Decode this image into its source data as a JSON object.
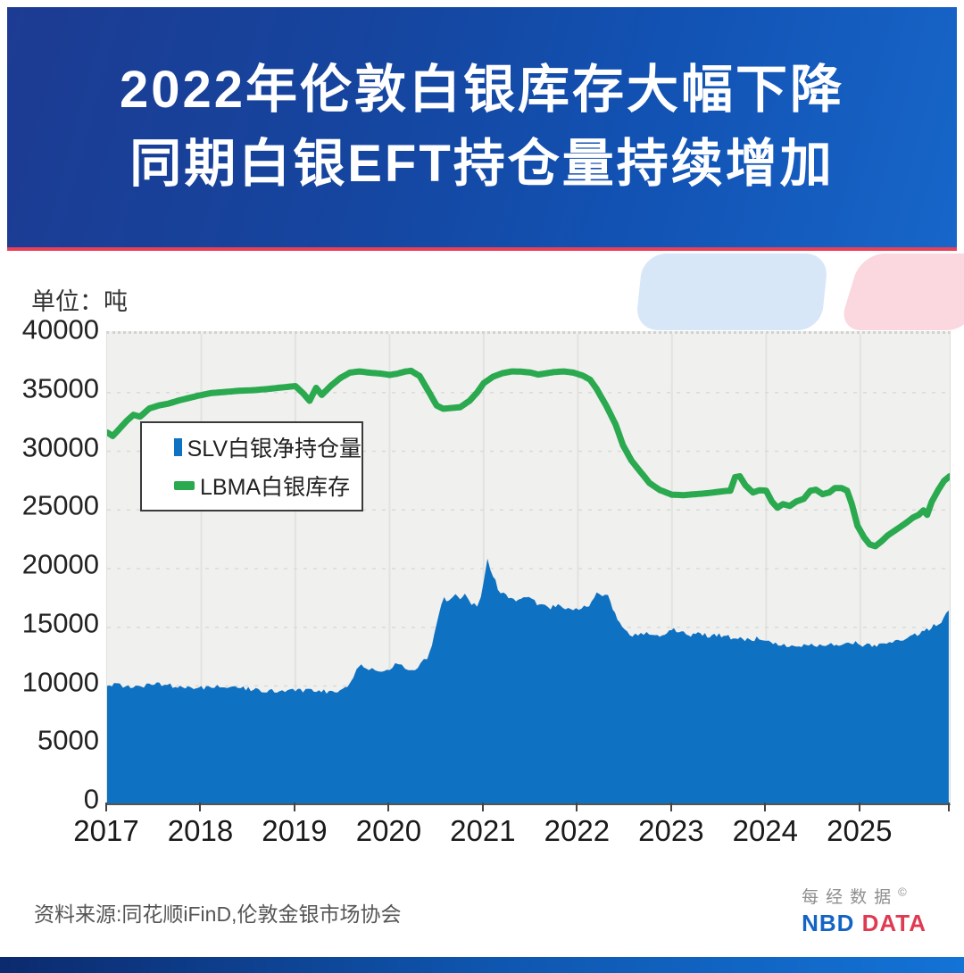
{
  "header": {
    "title_line1": "2022年伦敦白银库存大幅下降",
    "title_line2": "同期白银EFT持仓量持续增加"
  },
  "chart": {
    "unit_label": "单位：吨",
    "legend": [
      {
        "label": "SLV白银净持仓量",
        "color": "#0f71c1"
      },
      {
        "label": "LBMA白银库存",
        "color": "#2aa94f"
      }
    ]
  },
  "chart_data": {
    "type": "area+line",
    "title": "2022年伦敦白银库存大幅下降 同期白银EFT持仓量持续增加",
    "ylabel": "单位：吨",
    "ylim": [
      0,
      40000
    ],
    "y_ticks": [
      0,
      5000,
      10000,
      15000,
      20000,
      25000,
      30000,
      35000,
      40000
    ],
    "x_ticks": [
      2017,
      2018,
      2019,
      2020,
      2021,
      2022,
      2023,
      2024,
      2025
    ],
    "x_range": [
      2017,
      2025.95
    ],
    "grid": "on",
    "legend_position": "upper-left-box",
    "series": [
      {
        "name": "SLV白银净持仓量",
        "type": "area",
        "color": "#0f71c1",
        "jitter": 200,
        "points": [
          [
            2017.0,
            10200
          ],
          [
            2017.05,
            10060
          ],
          [
            2017.1,
            10150
          ],
          [
            2017.17,
            9980
          ],
          [
            2017.25,
            9860
          ],
          [
            2017.33,
            9940
          ],
          [
            2017.42,
            10050
          ],
          [
            2017.5,
            10120
          ],
          [
            2017.58,
            10160
          ],
          [
            2017.67,
            10060
          ],
          [
            2017.75,
            9960
          ],
          [
            2017.83,
            9900
          ],
          [
            2017.92,
            9860
          ],
          [
            2018.0,
            9840
          ],
          [
            2018.08,
            9950
          ],
          [
            2018.17,
            9990
          ],
          [
            2018.25,
            9900
          ],
          [
            2018.33,
            9850
          ],
          [
            2018.42,
            9790
          ],
          [
            2018.5,
            9740
          ],
          [
            2018.58,
            9700
          ],
          [
            2018.67,
            9620
          ],
          [
            2018.75,
            9560
          ],
          [
            2018.83,
            9600
          ],
          [
            2018.92,
            9650
          ],
          [
            2019.0,
            9690
          ],
          [
            2019.08,
            9620
          ],
          [
            2019.17,
            9560
          ],
          [
            2019.25,
            9500
          ],
          [
            2019.33,
            9530
          ],
          [
            2019.42,
            9570
          ],
          [
            2019.5,
            9690
          ],
          [
            2019.58,
            10200
          ],
          [
            2019.65,
            11500
          ],
          [
            2019.7,
            11750
          ],
          [
            2019.78,
            11480
          ],
          [
            2019.85,
            11280
          ],
          [
            2019.92,
            11230
          ],
          [
            2020.0,
            11450
          ],
          [
            2020.06,
            11850
          ],
          [
            2020.13,
            11700
          ],
          [
            2020.2,
            11480
          ],
          [
            2020.27,
            11300
          ],
          [
            2020.33,
            11850
          ],
          [
            2020.4,
            12400
          ],
          [
            2020.45,
            13600
          ],
          [
            2020.5,
            15300
          ],
          [
            2020.55,
            17000
          ],
          [
            2020.58,
            17560
          ],
          [
            2020.63,
            17180
          ],
          [
            2020.7,
            17820
          ],
          [
            2020.75,
            17480
          ],
          [
            2020.8,
            17940
          ],
          [
            2020.87,
            16850
          ],
          [
            2020.93,
            16940
          ],
          [
            2020.97,
            17400
          ],
          [
            2021.0,
            18850
          ],
          [
            2021.04,
            20990
          ],
          [
            2021.07,
            19850
          ],
          [
            2021.1,
            19390
          ],
          [
            2021.15,
            18400
          ],
          [
            2021.21,
            17780
          ],
          [
            2021.29,
            17500
          ],
          [
            2021.37,
            17330
          ],
          [
            2021.45,
            17710
          ],
          [
            2021.54,
            17150
          ],
          [
            2021.62,
            16850
          ],
          [
            2021.71,
            16610
          ],
          [
            2021.79,
            16940
          ],
          [
            2021.87,
            16660
          ],
          [
            2021.95,
            16560
          ],
          [
            2022.04,
            16610
          ],
          [
            2022.12,
            16940
          ],
          [
            2022.2,
            17940
          ],
          [
            2022.26,
            17820
          ],
          [
            2022.32,
            17560
          ],
          [
            2022.37,
            16560
          ],
          [
            2022.42,
            15800
          ],
          [
            2022.47,
            14880
          ],
          [
            2022.55,
            14270
          ],
          [
            2022.64,
            14420
          ],
          [
            2022.73,
            14500
          ],
          [
            2022.82,
            14230
          ],
          [
            2022.92,
            14500
          ],
          [
            2023.02,
            14810
          ],
          [
            2023.1,
            14660
          ],
          [
            2023.2,
            14310
          ],
          [
            2023.3,
            14460
          ],
          [
            2023.4,
            14230
          ],
          [
            2023.5,
            14310
          ],
          [
            2023.6,
            14150
          ],
          [
            2023.7,
            14080
          ],
          [
            2023.8,
            13890
          ],
          [
            2023.9,
            14040
          ],
          [
            2024.0,
            13920
          ],
          [
            2024.1,
            13660
          ],
          [
            2024.22,
            13480
          ],
          [
            2024.35,
            13360
          ],
          [
            2024.48,
            13550
          ],
          [
            2024.6,
            13430
          ],
          [
            2024.72,
            13580
          ],
          [
            2024.85,
            13640
          ],
          [
            2024.95,
            13700
          ],
          [
            2025.05,
            13480
          ],
          [
            2025.15,
            13360
          ],
          [
            2025.25,
            13580
          ],
          [
            2025.37,
            13820
          ],
          [
            2025.48,
            14040
          ],
          [
            2025.58,
            14310
          ],
          [
            2025.68,
            14700
          ],
          [
            2025.78,
            15100
          ],
          [
            2025.86,
            15500
          ],
          [
            2025.94,
            16450
          ]
        ]
      },
      {
        "name": "LBMA白银库存",
        "type": "line",
        "color": "#2aa94f",
        "jitter": 0,
        "points": [
          [
            2017.0,
            31600
          ],
          [
            2017.06,
            31300
          ],
          [
            2017.13,
            31900
          ],
          [
            2017.21,
            32600
          ],
          [
            2017.28,
            33100
          ],
          [
            2017.35,
            32950
          ],
          [
            2017.45,
            33650
          ],
          [
            2017.55,
            33900
          ],
          [
            2017.65,
            34050
          ],
          [
            2017.75,
            34300
          ],
          [
            2017.85,
            34500
          ],
          [
            2017.95,
            34700
          ],
          [
            2018.1,
            34950
          ],
          [
            2018.25,
            35050
          ],
          [
            2018.4,
            35150
          ],
          [
            2018.55,
            35200
          ],
          [
            2018.7,
            35300
          ],
          [
            2018.85,
            35430
          ],
          [
            2019.0,
            35550
          ],
          [
            2019.08,
            34950
          ],
          [
            2019.15,
            34300
          ],
          [
            2019.22,
            35400
          ],
          [
            2019.28,
            34800
          ],
          [
            2019.38,
            35600
          ],
          [
            2019.48,
            36250
          ],
          [
            2019.58,
            36700
          ],
          [
            2019.68,
            36800
          ],
          [
            2019.78,
            36700
          ],
          [
            2019.9,
            36620
          ],
          [
            2020.0,
            36500
          ],
          [
            2020.08,
            36600
          ],
          [
            2020.17,
            36800
          ],
          [
            2020.23,
            36850
          ],
          [
            2020.32,
            36400
          ],
          [
            2020.4,
            35300
          ],
          [
            2020.5,
            33900
          ],
          [
            2020.57,
            33620
          ],
          [
            2020.65,
            33680
          ],
          [
            2020.75,
            33750
          ],
          [
            2020.85,
            34300
          ],
          [
            2020.93,
            35000
          ],
          [
            2021.0,
            35800
          ],
          [
            2021.1,
            36350
          ],
          [
            2021.2,
            36650
          ],
          [
            2021.3,
            36800
          ],
          [
            2021.4,
            36780
          ],
          [
            2021.5,
            36700
          ],
          [
            2021.58,
            36530
          ],
          [
            2021.65,
            36620
          ],
          [
            2021.75,
            36750
          ],
          [
            2021.85,
            36800
          ],
          [
            2021.95,
            36700
          ],
          [
            2022.05,
            36450
          ],
          [
            2022.13,
            36100
          ],
          [
            2022.2,
            35300
          ],
          [
            2022.3,
            33900
          ],
          [
            2022.4,
            32300
          ],
          [
            2022.48,
            30500
          ],
          [
            2022.57,
            29200
          ],
          [
            2022.66,
            28300
          ],
          [
            2022.76,
            27300
          ],
          [
            2022.87,
            26700
          ],
          [
            2023.0,
            26300
          ],
          [
            2023.12,
            26260
          ],
          [
            2023.25,
            26340
          ],
          [
            2023.4,
            26450
          ],
          [
            2023.55,
            26600
          ],
          [
            2023.62,
            26640
          ],
          [
            2023.67,
            27790
          ],
          [
            2023.72,
            27870
          ],
          [
            2023.78,
            27100
          ],
          [
            2023.86,
            26490
          ],
          [
            2023.93,
            26680
          ],
          [
            2024.0,
            26640
          ],
          [
            2024.06,
            25720
          ],
          [
            2024.12,
            25190
          ],
          [
            2024.18,
            25500
          ],
          [
            2024.25,
            25340
          ],
          [
            2024.32,
            25720
          ],
          [
            2024.4,
            25950
          ],
          [
            2024.47,
            26640
          ],
          [
            2024.53,
            26720
          ],
          [
            2024.6,
            26340
          ],
          [
            2024.67,
            26490
          ],
          [
            2024.73,
            26870
          ],
          [
            2024.8,
            26870
          ],
          [
            2024.86,
            26640
          ],
          [
            2024.91,
            25500
          ],
          [
            2024.97,
            23660
          ],
          [
            2025.04,
            22670
          ],
          [
            2025.1,
            22060
          ],
          [
            2025.16,
            21910
          ],
          [
            2025.22,
            22290
          ],
          [
            2025.29,
            22820
          ],
          [
            2025.36,
            23200
          ],
          [
            2025.43,
            23580
          ],
          [
            2025.5,
            23970
          ],
          [
            2025.56,
            24350
          ],
          [
            2025.62,
            24580
          ],
          [
            2025.67,
            24960
          ],
          [
            2025.71,
            24580
          ],
          [
            2025.76,
            25720
          ],
          [
            2025.83,
            26720
          ],
          [
            2025.89,
            27480
          ],
          [
            2025.95,
            27870
          ]
        ]
      }
    ]
  },
  "footer": {
    "source": "资料来源:同花顺iFinD,伦敦金银市场协会",
    "logo": {
      "cn": "每经数据",
      "reg": "©",
      "nbd": "NBD",
      "data": "DATA"
    }
  }
}
